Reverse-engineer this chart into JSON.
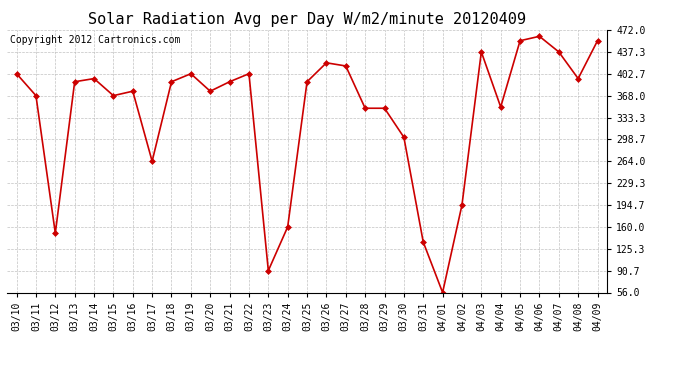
{
  "title": "Solar Radiation Avg per Day W/m2/minute 20120409",
  "copyright": "Copyright 2012 Cartronics.com",
  "labels": [
    "03/10",
    "03/11",
    "03/12",
    "03/13",
    "03/14",
    "03/15",
    "03/16",
    "03/17",
    "03/18",
    "03/19",
    "03/20",
    "03/21",
    "03/22",
    "03/23",
    "03/24",
    "03/25",
    "03/26",
    "03/27",
    "03/28",
    "03/29",
    "03/30",
    "03/31",
    "04/01",
    "04/02",
    "04/03",
    "04/04",
    "04/05",
    "04/06",
    "04/07",
    "04/08",
    "04/09"
  ],
  "values": [
    402.7,
    368.0,
    150.0,
    390.0,
    395.0,
    368.0,
    375.0,
    264.0,
    390.0,
    402.7,
    375.0,
    390.0,
    402.7,
    90.7,
    160.0,
    390.0,
    420.0,
    415.0,
    348.0,
    348.0,
    302.0,
    136.0,
    56.0,
    194.7,
    437.3,
    350.0,
    455.0,
    462.0,
    437.3,
    395.0,
    455.0
  ],
  "yticks": [
    56.0,
    90.7,
    125.3,
    160.0,
    194.7,
    229.3,
    264.0,
    298.7,
    333.3,
    368.0,
    402.7,
    437.3,
    472.0
  ],
  "ymin": 56.0,
  "ymax": 472.0,
  "line_color": "#cc0000",
  "marker": "D",
  "marker_size": 3,
  "bg_color": "#ffffff",
  "grid_color": "#bbbbbb",
  "title_fontsize": 11,
  "copyright_fontsize": 7,
  "tick_fontsize": 7
}
